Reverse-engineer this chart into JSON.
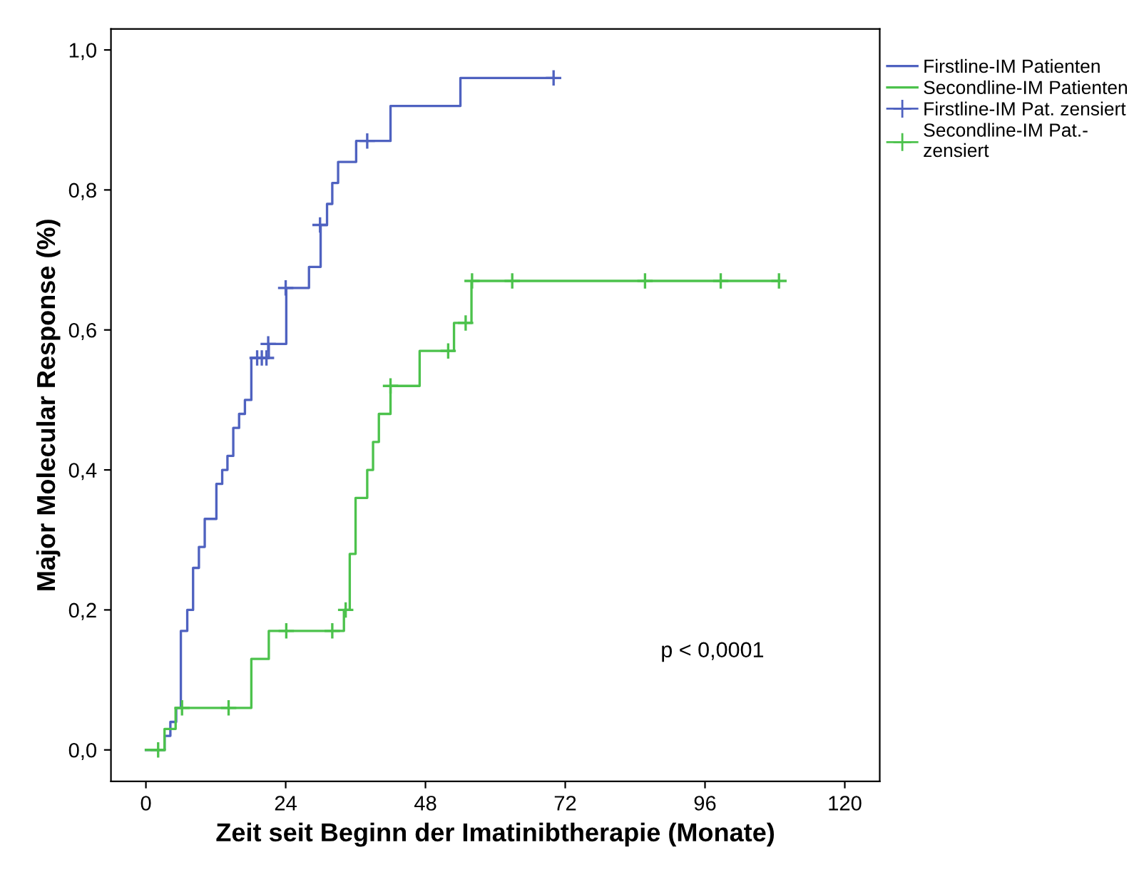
{
  "chart_data": {
    "type": "step",
    "xlabel": "Zeit seit Beginn der Imatinibtherapie (Monate)",
    "ylabel": "Major Molecular Response (%)",
    "series": [
      {
        "name": "Firstline-IM Patienten",
        "color": "#4f62c0",
        "x": [
          0,
          3.2,
          4.2,
          5.2,
          6.0,
          7.1,
          8.1,
          9.1,
          10.1,
          12.1,
          13.1,
          14.0,
          15.0,
          16.0,
          17.0,
          18.1,
          21.1,
          24.1,
          28.0,
          30.0,
          31.1,
          32.0,
          33.0,
          36.1,
          42.0,
          54.0,
          70.0
        ],
        "values": [
          0,
          0.02,
          0.04,
          0.06,
          0.17,
          0.2,
          0.26,
          0.29,
          0.33,
          0.38,
          0.4,
          0.42,
          0.46,
          0.48,
          0.5,
          0.56,
          0.58,
          0.66,
          0.69,
          0.75,
          0.78,
          0.81,
          0.84,
          0.87,
          0.92,
          0.96,
          0.96
        ]
      },
      {
        "name": "Secondline-IM Patienten",
        "color": "#4cc24c",
        "x": [
          0,
          3.2,
          5.1,
          18.1,
          21.1,
          34.0,
          35.0,
          36.0,
          38.0,
          39.0,
          40.0,
          42.0,
          47.0,
          52.9,
          55.9,
          108.7
        ],
        "values": [
          0,
          0.03,
          0.06,
          0.13,
          0.17,
          0.2,
          0.28,
          0.36,
          0.4,
          0.44,
          0.48,
          0.52,
          0.57,
          0.61,
          0.67,
          0.67
        ]
      },
      {
        "name": "Firstline-IM Pat. zensiert",
        "type": "scatter",
        "marker": "cross",
        "color": "#4f62c0",
        "x": [
          19.1,
          19.9,
          20.7,
          21.0,
          24.0,
          29.9,
          38.0,
          70.0
        ],
        "values": [
          0.56,
          0.56,
          0.56,
          0.58,
          0.66,
          0.75,
          0.87,
          0.96
        ]
      },
      {
        "name": "Secondline-IM Pat.-\nzensiert",
        "type": "scatter",
        "marker": "cross",
        "color": "#4cc24c",
        "x": [
          2.1,
          6.2,
          14.2,
          24.1,
          32.0,
          34.3,
          42.0,
          51.9,
          54.9,
          56.0,
          62.9,
          85.7,
          98.7,
          108.7
        ],
        "values": [
          0,
          0.06,
          0.06,
          0.17,
          0.17,
          0.2,
          0.52,
          0.57,
          0.61,
          0.67,
          0.67,
          0.67,
          0.67,
          0.67
        ]
      }
    ],
    "annotations": [
      "p < 0,0001"
    ],
    "xlim": [
      -6,
      126
    ],
    "ylim": [
      -0.045,
      1.03
    ],
    "xticks": [
      0,
      24,
      48,
      72,
      96,
      120
    ],
    "yticks": [
      {
        "value": 0,
        "label": "0,0"
      },
      {
        "value": 0.2,
        "label": "0,2"
      },
      {
        "value": 0.4,
        "label": "0,4"
      },
      {
        "value": 0.6,
        "label": "0,6"
      },
      {
        "value": 0.8,
        "label": "0,8"
      },
      {
        "value": 1.0,
        "label": "1,0"
      }
    ],
    "legend": "right"
  }
}
